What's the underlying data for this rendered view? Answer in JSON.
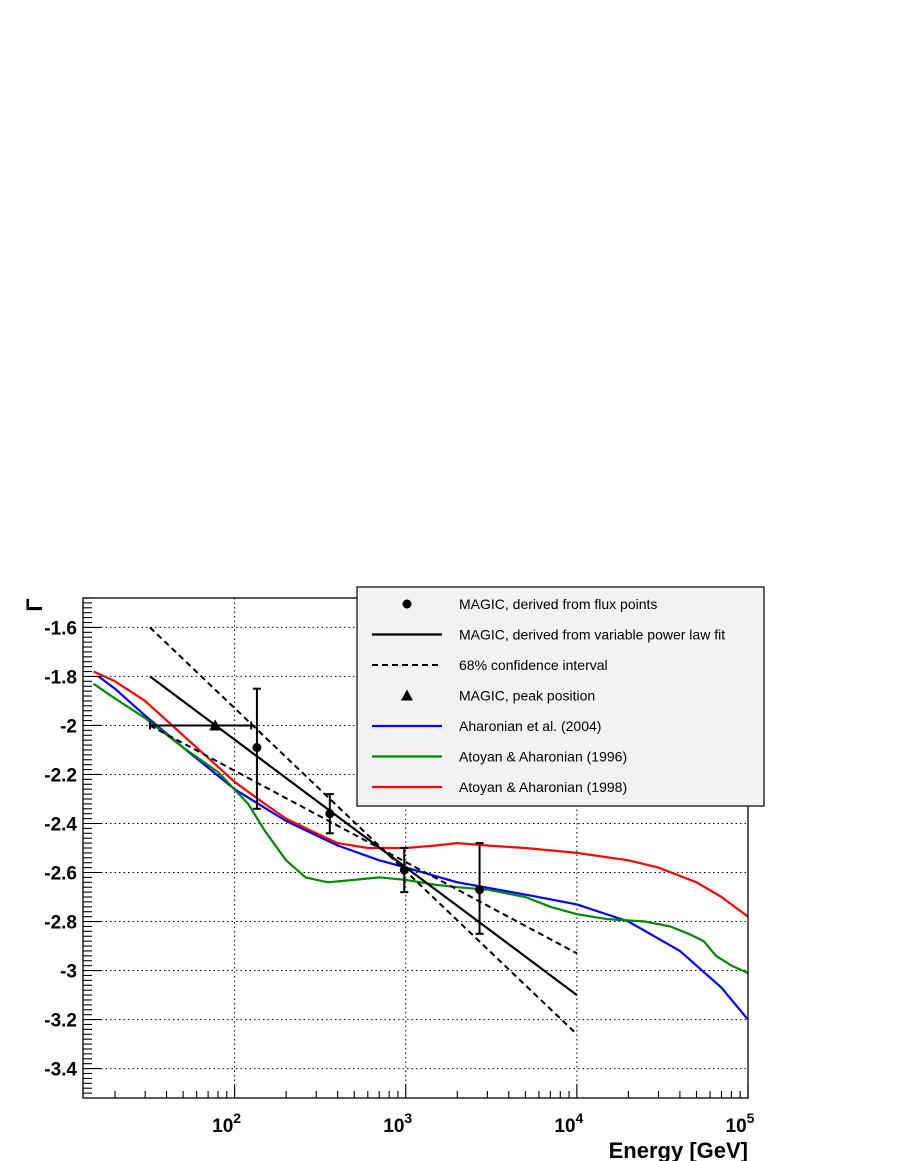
{
  "chart_data": {
    "type": "line",
    "title": "",
    "xlabel": "Energy [GeV]",
    "ylabel": "Γ",
    "x_scale": "log",
    "xlim": [
      13,
      100000
    ],
    "ylim": [
      -3.52,
      -1.48
    ],
    "x_ticks": [
      {
        "value": 100,
        "base": "10",
        "exp": "2"
      },
      {
        "value": 1000,
        "base": "10",
        "exp": "3"
      },
      {
        "value": 10000,
        "base": "10",
        "exp": "4"
      },
      {
        "value": 100000,
        "base": "10",
        "exp": "5"
      }
    ],
    "y_ticks": [
      {
        "value": -1.6,
        "label": "-1.6"
      },
      {
        "value": -1.8,
        "label": "-1.8"
      },
      {
        "value": -2.0,
        "label": "-2"
      },
      {
        "value": -2.2,
        "label": "-2.2"
      },
      {
        "value": -2.4,
        "label": "-2.4"
      },
      {
        "value": -2.6,
        "label": "-2.6"
      },
      {
        "value": -2.8,
        "label": "-2.8"
      },
      {
        "value": -3.0,
        "label": "-3"
      },
      {
        "value": -3.2,
        "label": "-3.2"
      },
      {
        "value": -3.4,
        "label": "-3.4"
      }
    ],
    "grid": true,
    "legend_position": "top-right",
    "legend": [
      {
        "label": "MAGIC, derived from flux points",
        "symbol": "circle",
        "color": "#000000"
      },
      {
        "label": "MAGIC, derived from variable power law fit",
        "symbol": "line",
        "color": "#000000"
      },
      {
        "label": "68% confidence interval",
        "symbol": "dashed",
        "color": "#000000"
      },
      {
        "label": "MAGIC, peak position",
        "symbol": "triangle",
        "color": "#000000"
      },
      {
        "label": "Aharonian et al. (2004)",
        "symbol": "line",
        "color": "#0000ff"
      },
      {
        "label": "Atoyan & Aharonian (1996)",
        "symbol": "line",
        "color": "#008800"
      },
      {
        "label": "Atoyan & Aharonian (1998)",
        "symbol": "line",
        "color": "#ff0000"
      }
    ],
    "flux_points": [
      {
        "x": 135,
        "y": -2.09,
        "y_hi": -1.85,
        "y_lo": -2.34
      },
      {
        "x": 360,
        "y": -2.36,
        "y_hi": -2.28,
        "y_lo": -2.44
      },
      {
        "x": 980,
        "y": -2.59,
        "y_hi": -2.5,
        "y_lo": -2.68
      },
      {
        "x": 2700,
        "y": -2.67,
        "y_hi": -2.48,
        "y_lo": -2.85
      }
    ],
    "peak_position": {
      "x": 77,
      "y": -2.0,
      "x_lo": 32,
      "x_hi": 125
    },
    "fit_line": {
      "x": [
        32,
        10000
      ],
      "y": [
        -1.8,
        -3.1
      ]
    },
    "confidence_upper": {
      "x": [
        32,
        10000
      ],
      "y": [
        -1.6,
        -3.26
      ]
    },
    "confidence_lower": {
      "x": [
        32,
        10000
      ],
      "y": [
        -2.0,
        -2.93
      ]
    },
    "series": [
      {
        "name": "Aharonian et al. (2004)",
        "color": "#0000ff",
        "x": [
          16,
          20,
          30,
          50,
          100,
          200,
          400,
          700,
          1000,
          2000,
          5000,
          10000,
          20000,
          40000,
          70000,
          100000
        ],
        "y": [
          -1.8,
          -1.85,
          -1.96,
          -2.09,
          -2.26,
          -2.39,
          -2.49,
          -2.55,
          -2.58,
          -2.64,
          -2.69,
          -2.73,
          -2.8,
          -2.92,
          -3.07,
          -3.2
        ]
      },
      {
        "name": "Atoyan & Aharonian (1996)",
        "color": "#008800",
        "x": [
          15,
          20,
          30,
          50,
          80,
          120,
          150,
          200,
          260,
          350,
          500,
          700,
          1000,
          1500,
          2000,
          3000,
          5000,
          7000,
          10000,
          15000,
          25000,
          35000,
          45000,
          55000,
          65000,
          80000,
          100000
        ],
        "y": [
          -1.83,
          -1.89,
          -1.97,
          -2.09,
          -2.19,
          -2.32,
          -2.43,
          -2.55,
          -2.62,
          -2.64,
          -2.63,
          -2.62,
          -2.63,
          -2.65,
          -2.66,
          -2.67,
          -2.7,
          -2.74,
          -2.77,
          -2.79,
          -2.8,
          -2.82,
          -2.85,
          -2.88,
          -2.94,
          -2.98,
          -3.01
        ]
      },
      {
        "name": "Atoyan & Aharonian (1998)",
        "color": "#ff0000",
        "x": [
          15,
          20,
          30,
          50,
          100,
          150,
          200,
          300,
          400,
          600,
          800,
          1000,
          1500,
          2000,
          3000,
          5000,
          10000,
          20000,
          30000,
          50000,
          70000,
          100000
        ],
        "y": [
          -1.78,
          -1.82,
          -1.9,
          -2.04,
          -2.23,
          -2.32,
          -2.38,
          -2.44,
          -2.48,
          -2.5,
          -2.5,
          -2.5,
          -2.49,
          -2.48,
          -2.49,
          -2.5,
          -2.52,
          -2.55,
          -2.58,
          -2.64,
          -2.7,
          -2.78
        ]
      }
    ]
  }
}
